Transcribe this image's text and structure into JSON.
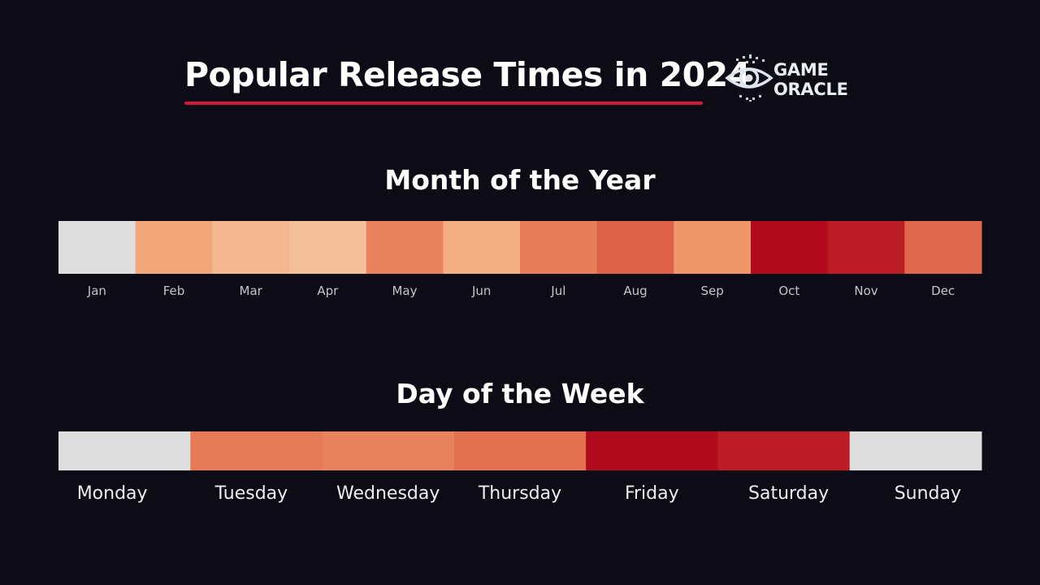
{
  "header": {
    "title": "Popular Release Times in 2024",
    "brand_line1": "GAME",
    "brand_line2": "ORACLE",
    "underline_color": "#d41a3a"
  },
  "chart_data": [
    {
      "type": "heatmap",
      "title": "Month of the Year",
      "categories": [
        "Jan",
        "Feb",
        "Mar",
        "Apr",
        "May",
        "Jun",
        "Jul",
        "Aug",
        "Sep",
        "Oct",
        "Nov",
        "Dec"
      ],
      "values": [
        0.0,
        0.35,
        0.25,
        0.2,
        0.55,
        0.32,
        0.58,
        0.72,
        0.45,
        1.0,
        0.95,
        0.68
      ],
      "colormap": [
        "#dedede",
        "#f4c09b",
        "#f1a070",
        "#e57a57",
        "#d8503f",
        "#b10b1d"
      ],
      "legend": "none",
      "grid": false
    },
    {
      "type": "heatmap",
      "title": "Day of the Week",
      "categories": [
        "Monday",
        "Tuesday",
        "Wednesday",
        "Thursday",
        "Friday",
        "Saturday",
        "Sunday"
      ],
      "values": [
        0.0,
        0.6,
        0.55,
        0.65,
        1.0,
        0.95,
        0.0
      ],
      "colormap": [
        "#dedede",
        "#f4c09b",
        "#f1a070",
        "#e57a57",
        "#d8503f",
        "#b10b1d"
      ],
      "legend": "none",
      "grid": false
    }
  ]
}
